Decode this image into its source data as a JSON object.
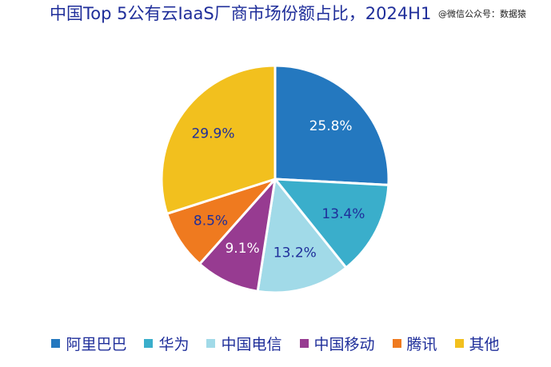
{
  "header": {
    "title": "中国Top 5公有云IaaS厂商市场份额占比，2024H1",
    "watermark": "@微信公众号：数据猿"
  },
  "chart_data": {
    "type": "pie",
    "title": "中国Top 5公有云IaaS厂商市场份额占比，2024H1",
    "categories": [
      "阿里巴巴",
      "华为",
      "中国电信",
      "中国移动",
      "腾讯",
      "其他"
    ],
    "values": [
      25.8,
      13.4,
      13.2,
      9.1,
      8.5,
      29.9
    ],
    "labels": [
      "25.8%",
      "13.4%",
      "13.2%",
      "9.1%",
      "8.5%",
      "29.9%"
    ],
    "colors": [
      "#2478bf",
      "#3aaecb",
      "#a1dae8",
      "#973b91",
      "#ef7a1f",
      "#f2c01e"
    ],
    "label_colors": [
      "#ffffff",
      "#1f2e9a",
      "#1f2e9a",
      "#ffffff",
      "#1f2e9a",
      "#1f2e9a"
    ],
    "start_angle": "12 o'clock",
    "direction": "clockwise",
    "legend_position": "bottom"
  }
}
